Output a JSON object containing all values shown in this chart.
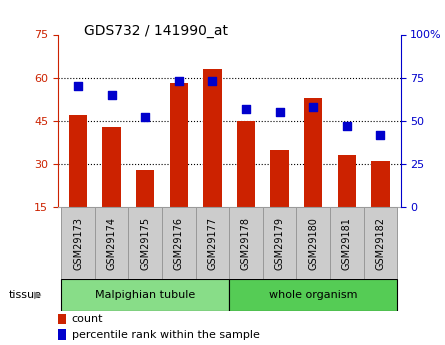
{
  "title": "GDS732 / 141990_at",
  "categories": [
    "GSM29173",
    "GSM29174",
    "GSM29175",
    "GSM29176",
    "GSM29177",
    "GSM29178",
    "GSM29179",
    "GSM29180",
    "GSM29181",
    "GSM29182"
  ],
  "bar_values": [
    47,
    43,
    28,
    58,
    63,
    45,
    35,
    53,
    33,
    31
  ],
  "percentile_values": [
    70,
    65,
    52,
    73,
    73,
    57,
    55,
    58,
    47,
    42
  ],
  "bar_color": "#cc2200",
  "dot_color": "#0000cc",
  "left_ylim": [
    15,
    75
  ],
  "left_yticks": [
    15,
    30,
    45,
    60,
    75
  ],
  "right_ylim": [
    0,
    100
  ],
  "right_yticks": [
    0,
    25,
    50,
    75,
    100
  ],
  "tissue_groups": [
    {
      "label": "Malpighian tubule",
      "indices": [
        0,
        1,
        2,
        3,
        4
      ],
      "color": "#88dd88"
    },
    {
      "label": "whole organism",
      "indices": [
        5,
        6,
        7,
        8,
        9
      ],
      "color": "#55cc55"
    }
  ],
  "tissue_label": "tissue",
  "legend_count": "count",
  "legend_percentile": "percentile rank within the sample",
  "bar_width": 0.55,
  "dot_size": 40,
  "grid_dotted_ticks": [
    30,
    45,
    60
  ],
  "label_box_color": "#cccccc",
  "label_box_edge": "#999999"
}
